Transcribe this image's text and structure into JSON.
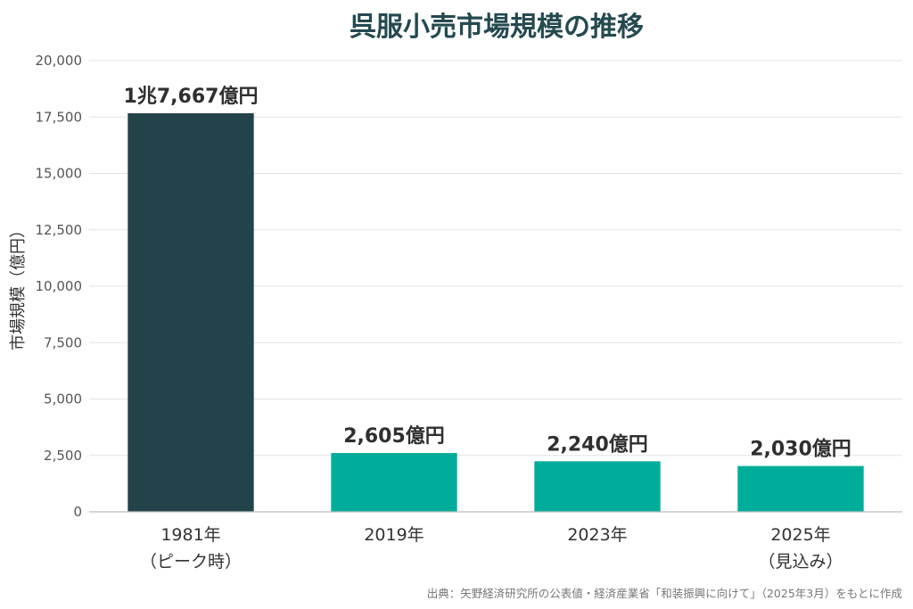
{
  "chart_data": {
    "type": "bar",
    "title": "呉服小売市場規模の推移",
    "ylabel": "市場規模（億円）",
    "xlabel": "",
    "ylim": [
      0,
      20000
    ],
    "yticks": [
      0,
      2500,
      5000,
      7500,
      10000,
      12500,
      15000,
      17500,
      20000
    ],
    "ytick_labels": [
      "0",
      "2,500",
      "5,000",
      "7,500",
      "10,000",
      "12,500",
      "15,000",
      "17,500",
      "20,000"
    ],
    "grid": true,
    "categories": [
      {
        "line1": "1981年",
        "line2": "（ピーク時）"
      },
      {
        "line1": "2019年",
        "line2": ""
      },
      {
        "line1": "2023年",
        "line2": ""
      },
      {
        "line1": "2025年",
        "line2": "（見込み）"
      }
    ],
    "values": [
      17667,
      2605,
      2240,
      2030
    ],
    "data_labels": [
      "1兆7,667億円",
      "2,605億円",
      "2,240億円",
      "2,030億円"
    ],
    "colors": [
      "#23434a",
      "#00ad9a",
      "#00ad9a",
      "#00ad9a"
    ]
  },
  "source": "出典：矢野経済研究所の公表値・経済産業省「和装振興に向けて」（2025年3月）をもとに作成"
}
